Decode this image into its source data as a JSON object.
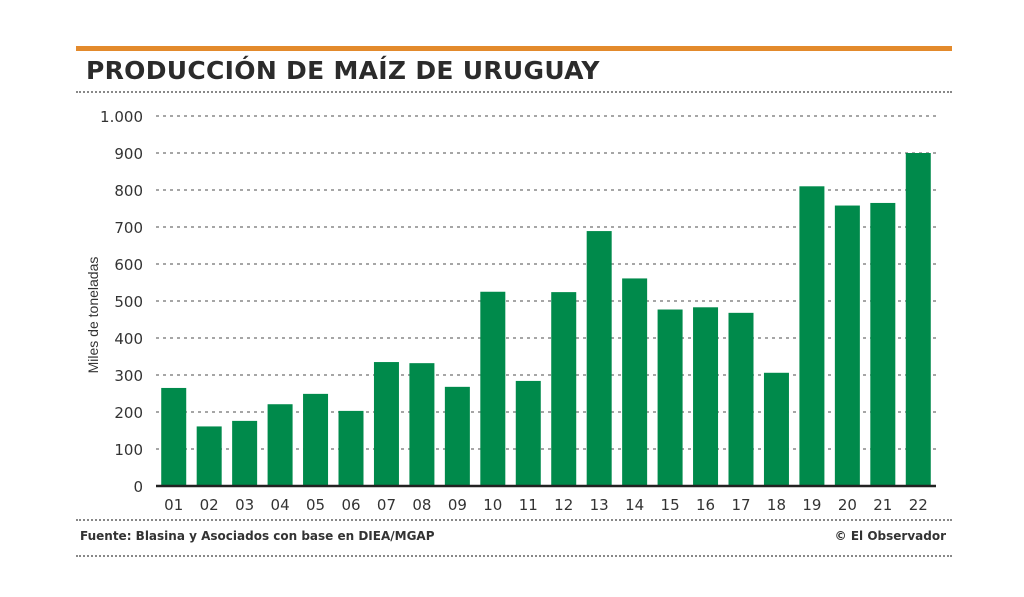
{
  "chart_data": {
    "type": "bar",
    "title": "PRODUCCIÓN DE MAÍZ DE URUGUAY",
    "ylabel": "Miles de toneladas",
    "xlabel": "",
    "categories": [
      "01",
      "02",
      "03",
      "04",
      "05",
      "06",
      "07",
      "08",
      "09",
      "10",
      "11",
      "12",
      "13",
      "14",
      "15",
      "16",
      "17",
      "18",
      "19",
      "20",
      "21",
      "22"
    ],
    "values": [
      265,
      161,
      176,
      221,
      249,
      203,
      335,
      332,
      268,
      525,
      284,
      524,
      689,
      561,
      477,
      483,
      468,
      306,
      810,
      758,
      765,
      900
    ],
    "ylim": [
      0,
      1000
    ],
    "yticks": [
      0,
      100,
      200,
      300,
      400,
      500,
      600,
      700,
      800,
      900,
      1000
    ],
    "ytick_labels": [
      "0",
      "100",
      "200",
      "300",
      "400",
      "500",
      "600",
      "700",
      "800",
      "900",
      "1.000"
    ],
    "grid": true,
    "bar_color": "#008a4b",
    "accent_color": "#e38a2c"
  },
  "footer": {
    "source": "Fuente: Blasina y Asociados con base en DIEA/MGAP",
    "credit": "© El Observador"
  }
}
